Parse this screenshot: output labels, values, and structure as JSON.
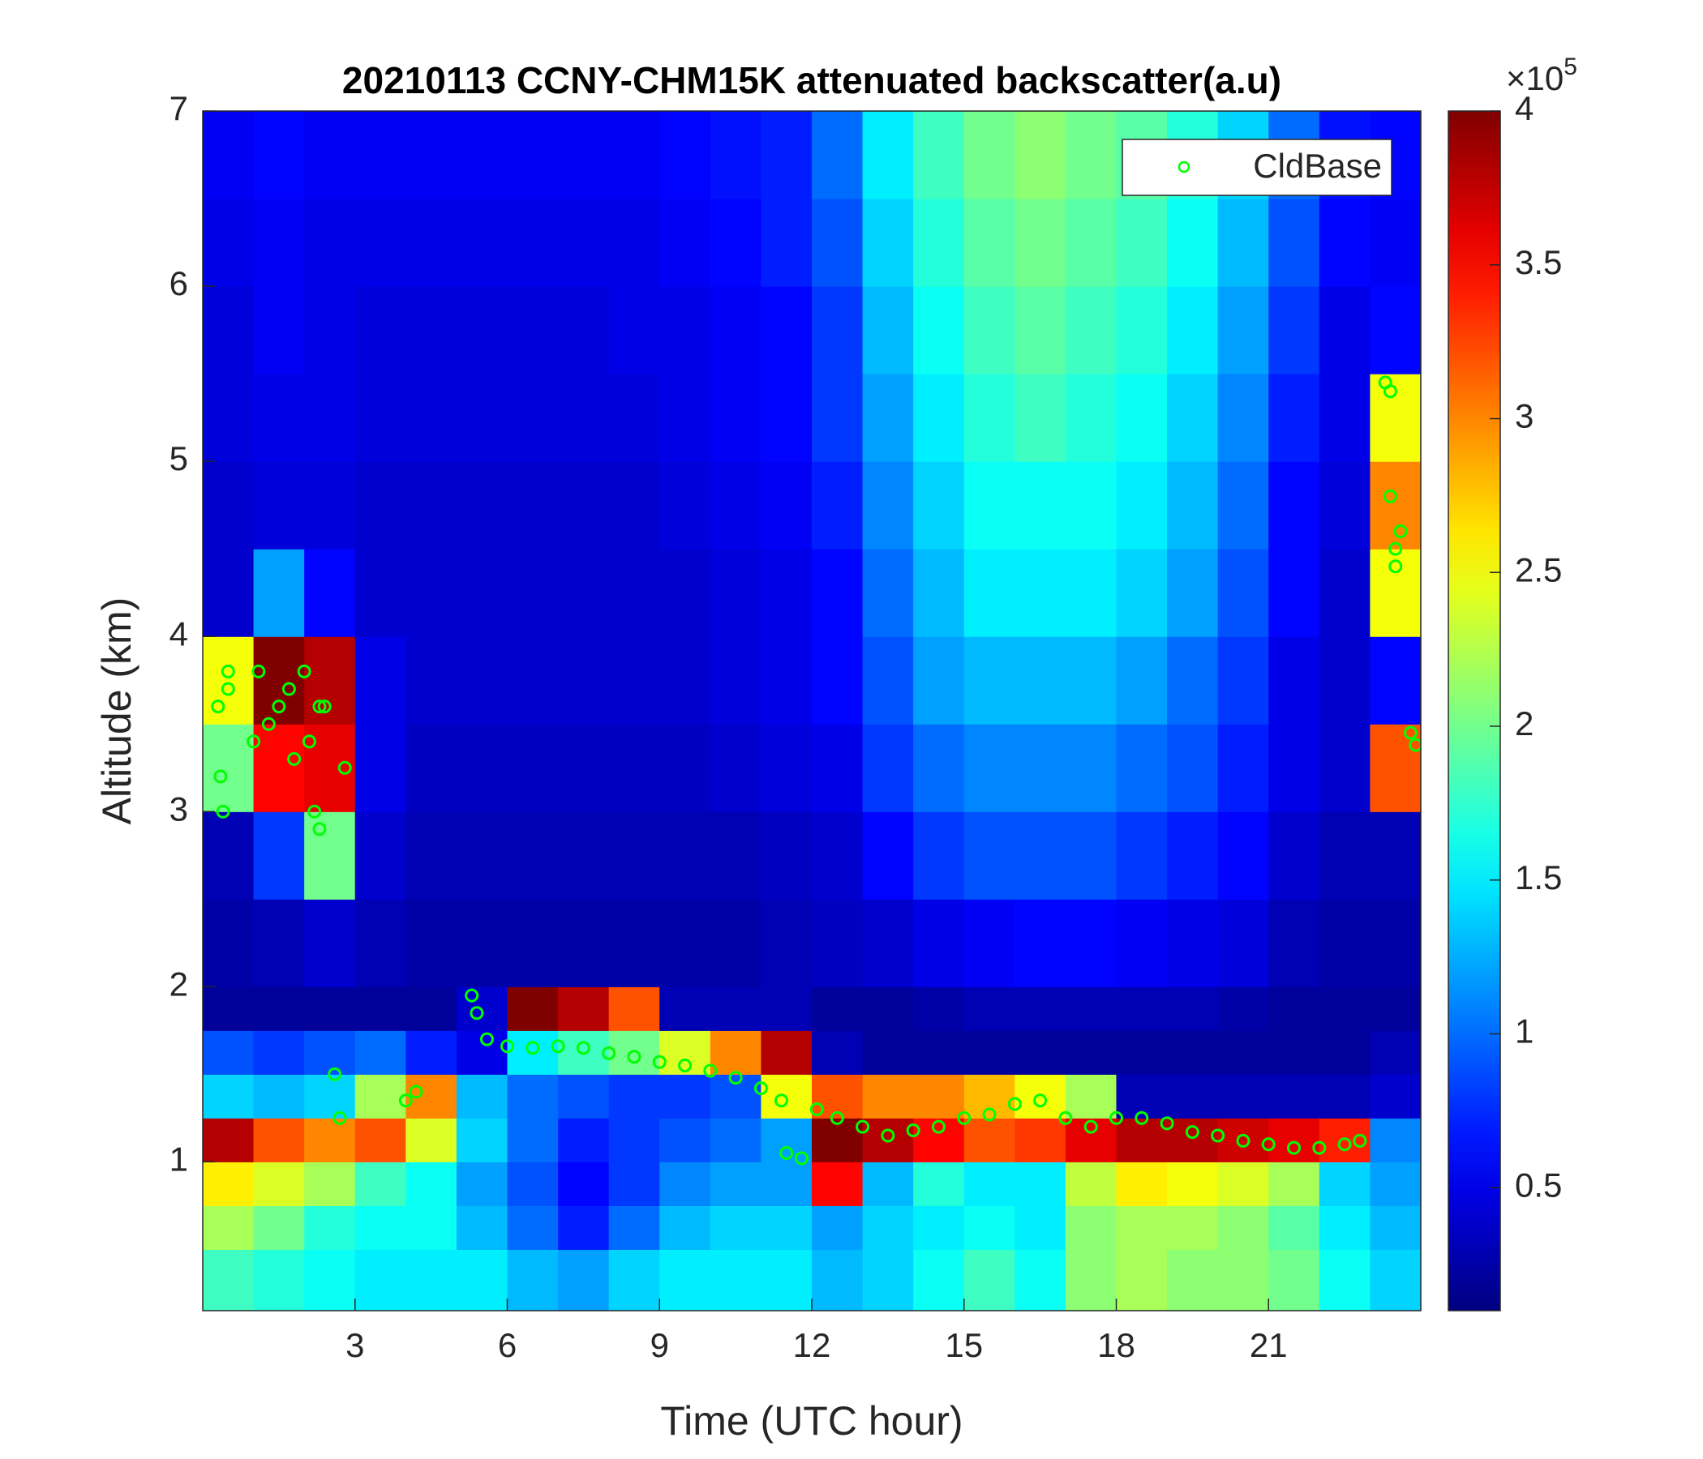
{
  "chart_data": {
    "type": "heatmap",
    "title": "20210113 CCNY-CHM15K attenuated backscatter(a.u)",
    "xlabel": "Time (UTC hour)",
    "ylabel": "Altitude (km)",
    "xlim": [
      0,
      24
    ],
    "ylim": [
      0.15,
      7
    ],
    "xticks": [
      3,
      6,
      9,
      12,
      15,
      18,
      21
    ],
    "yticks": [
      1,
      2,
      3,
      4,
      5,
      6,
      7
    ],
    "colormap": "jet",
    "clim": [
      0.1,
      4
    ],
    "cticks": [
      0.5,
      1,
      1.5,
      2,
      2.5,
      3,
      3.5,
      4
    ],
    "colorbar_multiplier": "×10",
    "colorbar_exponent": "5",
    "legend": "northeast",
    "x_edges": [
      0,
      1,
      2,
      3,
      4,
      5,
      6,
      7,
      8,
      9,
      10,
      11,
      12,
      13,
      14,
      15,
      16,
      17,
      18,
      19,
      20,
      21,
      22,
      23,
      24
    ],
    "y_edges": [
      0.15,
      0.5,
      0.75,
      1,
      1.25,
      1.5,
      1.75,
      2,
      2.5,
      3,
      3.5,
      4,
      4.5,
      5,
      5.5,
      6,
      6.5,
      7
    ],
    "z": [
      [
        1.8,
        1.7,
        1.6,
        1.5,
        1.5,
        1.5,
        1.3,
        1.2,
        1.4,
        1.5,
        1.5,
        1.5,
        1.3,
        1.4,
        1.6,
        1.8,
        1.6,
        2.1,
        2.2,
        2.1,
        2.1,
        2.0,
        1.6,
        1.4
      ],
      [
        2.2,
        2.0,
        1.7,
        1.6,
        1.6,
        1.3,
        1.0,
        0.7,
        1.0,
        1.3,
        1.4,
        1.4,
        1.2,
        1.4,
        1.5,
        1.6,
        1.5,
        2.1,
        2.2,
        2.2,
        2.1,
        1.9,
        1.5,
        1.3
      ],
      [
        2.6,
        2.4,
        2.2,
        1.8,
        1.6,
        1.2,
        0.9,
        0.6,
        0.8,
        1.1,
        1.2,
        1.2,
        3.5,
        1.3,
        1.7,
        1.5,
        1.5,
        2.3,
        2.6,
        2.5,
        2.4,
        2.2,
        1.4,
        1.2
      ],
      [
        3.8,
        3.2,
        3.0,
        3.2,
        2.4,
        1.4,
        1.0,
        0.7,
        0.8,
        0.9,
        1.0,
        1.2,
        4.0,
        3.8,
        3.5,
        3.2,
        3.3,
        3.6,
        3.8,
        3.8,
        3.7,
        3.6,
        3.4,
        1.1
      ],
      [
        1.4,
        1.3,
        1.4,
        2.2,
        3.0,
        1.3,
        1.0,
        0.9,
        0.8,
        0.8,
        0.9,
        2.5,
        3.2,
        3.0,
        3.0,
        2.8,
        2.5,
        2.2,
        0.3,
        0.3,
        0.3,
        0.3,
        0.3,
        0.4
      ],
      [
        0.9,
        0.8,
        0.9,
        1.0,
        0.7,
        0.5,
        1.5,
        1.8,
        2.0,
        2.4,
        3.0,
        3.8,
        0.3,
        0.2,
        0.2,
        0.2,
        0.2,
        0.2,
        0.2,
        0.2,
        0.2,
        0.2,
        0.2,
        0.3
      ],
      [
        0.2,
        0.2,
        0.2,
        0.2,
        0.2,
        0.4,
        4.0,
        3.8,
        3.2,
        0.3,
        0.3,
        0.3,
        0.2,
        0.2,
        0.25,
        0.3,
        0.3,
        0.3,
        0.3,
        0.3,
        0.25,
        0.2,
        0.2,
        0.2
      ],
      [
        0.25,
        0.3,
        0.4,
        0.3,
        0.25,
        0.25,
        0.25,
        0.25,
        0.25,
        0.25,
        0.25,
        0.3,
        0.35,
        0.4,
        0.5,
        0.55,
        0.6,
        0.6,
        0.55,
        0.5,
        0.45,
        0.3,
        0.25,
        0.25
      ],
      [
        0.3,
        0.8,
        2.0,
        0.4,
        0.3,
        0.3,
        0.3,
        0.3,
        0.3,
        0.3,
        0.3,
        0.35,
        0.4,
        0.6,
        0.8,
        0.9,
        0.9,
        0.9,
        0.8,
        0.7,
        0.6,
        0.4,
        0.3,
        0.3
      ],
      [
        2.0,
        3.5,
        3.6,
        0.5,
        0.35,
        0.35,
        0.35,
        0.35,
        0.35,
        0.35,
        0.4,
        0.45,
        0.5,
        0.8,
        1.0,
        1.1,
        1.1,
        1.1,
        1.0,
        0.9,
        0.7,
        0.5,
        0.4,
        3.2
      ],
      [
        2.5,
        4.0,
        3.8,
        0.5,
        0.4,
        0.4,
        0.4,
        0.4,
        0.4,
        0.4,
        0.45,
        0.5,
        0.6,
        0.9,
        1.2,
        1.3,
        1.3,
        1.3,
        1.2,
        1.0,
        0.8,
        0.5,
        0.4,
        0.6
      ],
      [
        0.4,
        1.2,
        0.6,
        0.4,
        0.4,
        0.4,
        0.4,
        0.4,
        0.4,
        0.4,
        0.45,
        0.5,
        0.6,
        1.0,
        1.3,
        1.5,
        1.5,
        1.5,
        1.4,
        1.2,
        0.9,
        0.6,
        0.4,
        2.5
      ],
      [
        0.4,
        0.45,
        0.45,
        0.4,
        0.4,
        0.4,
        0.4,
        0.4,
        0.4,
        0.45,
        0.5,
        0.55,
        0.7,
        1.1,
        1.4,
        1.6,
        1.6,
        1.6,
        1.5,
        1.3,
        1.0,
        0.6,
        0.45,
        3.0
      ],
      [
        0.45,
        0.5,
        0.5,
        0.45,
        0.45,
        0.45,
        0.45,
        0.45,
        0.45,
        0.5,
        0.55,
        0.6,
        0.8,
        1.2,
        1.5,
        1.7,
        1.8,
        1.7,
        1.6,
        1.4,
        1.1,
        0.7,
        0.5,
        2.5
      ],
      [
        0.45,
        0.55,
        0.5,
        0.45,
        0.45,
        0.45,
        0.45,
        0.45,
        0.5,
        0.5,
        0.55,
        0.6,
        0.8,
        1.3,
        1.6,
        1.8,
        1.9,
        1.8,
        1.7,
        1.5,
        1.2,
        0.8,
        0.5,
        0.6
      ],
      [
        0.5,
        0.55,
        0.5,
        0.5,
        0.5,
        0.5,
        0.5,
        0.5,
        0.5,
        0.55,
        0.6,
        0.7,
        0.9,
        1.4,
        1.7,
        1.9,
        2.0,
        1.9,
        1.8,
        1.6,
        1.3,
        0.9,
        0.6,
        0.55
      ],
      [
        0.55,
        0.6,
        0.55,
        0.55,
        0.55,
        0.55,
        0.55,
        0.55,
        0.55,
        0.6,
        0.65,
        0.7,
        1.0,
        1.5,
        1.8,
        2.0,
        2.1,
        2.0,
        1.9,
        1.7,
        1.4,
        1.0,
        0.65,
        0.6
      ]
    ],
    "series": [
      {
        "name": "CldBase",
        "type": "scatter",
        "color": "#00ff00",
        "x": [
          0.3,
          0.35,
          0.4,
          0.5,
          0.5,
          1.0,
          1.1,
          1.3,
          1.5,
          1.7,
          1.8,
          2.0,
          2.1,
          2.2,
          2.3,
          2.3,
          2.4,
          2.8,
          2.6,
          2.7,
          4.0,
          4.2,
          5.3,
          5.4,
          5.6,
          6,
          6.5,
          7,
          7.5,
          8,
          8.5,
          9,
          9.5,
          10,
          10.5,
          11,
          11.4,
          11.5,
          11.8,
          12.1,
          12.5,
          13,
          13.5,
          14,
          14.5,
          15,
          15.5,
          16,
          16.5,
          17,
          17.5,
          18,
          18.5,
          19,
          19.5,
          20,
          20.5,
          21,
          21.5,
          22,
          22.5,
          22.8,
          23.3,
          23.4,
          23.4,
          23.5,
          23.5,
          23.6,
          23.8,
          23.9
        ],
        "values": [
          3.6,
          3.2,
          3.0,
          3.7,
          3.8,
          3.4,
          3.8,
          3.5,
          3.6,
          3.7,
          3.3,
          3.8,
          3.4,
          3.0,
          2.9,
          3.6,
          3.6,
          3.25,
          1.5,
          1.25,
          1.35,
          1.4,
          1.95,
          1.85,
          1.7,
          1.66,
          1.65,
          1.66,
          1.65,
          1.62,
          1.6,
          1.57,
          1.55,
          1.52,
          1.48,
          1.42,
          1.35,
          1.05,
          1.02,
          1.3,
          1.25,
          1.2,
          1.15,
          1.18,
          1.2,
          1.25,
          1.27,
          1.33,
          1.35,
          1.25,
          1.2,
          1.25,
          1.25,
          1.22,
          1.17,
          1.15,
          1.12,
          1.1,
          1.08,
          1.08,
          1.1,
          1.12,
          5.45,
          5.4,
          4.8,
          4.5,
          4.4,
          4.6,
          3.45,
          3.38
        ]
      }
    ]
  }
}
